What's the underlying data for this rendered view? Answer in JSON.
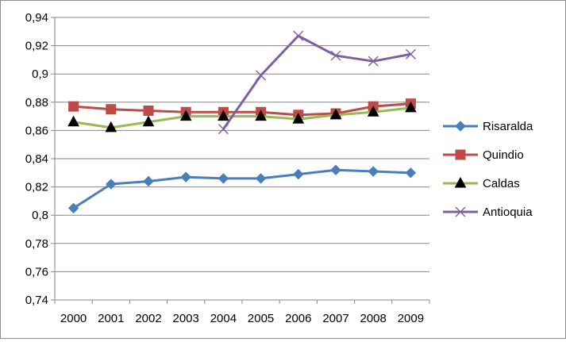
{
  "chart_data": {
    "type": "line",
    "title": "",
    "xlabel": "",
    "ylabel": "",
    "categories": [
      "2000",
      "2001",
      "2002",
      "2003",
      "2004",
      "2005",
      "2006",
      "2007",
      "2008",
      "2009"
    ],
    "ylim": [
      0.74,
      0.94
    ],
    "yticks": [
      0.74,
      0.76,
      0.78,
      0.8,
      0.82,
      0.84,
      0.86,
      0.88,
      0.9,
      0.92,
      0.94
    ],
    "ytick_labels": [
      "0,74",
      "0,76",
      "0,78",
      "0,8",
      "0,82",
      "0,84",
      "0,86",
      "0,88",
      "0,9",
      "0,92",
      "0,94"
    ],
    "grid": "horizontal",
    "legend": "right",
    "series": [
      {
        "name": "Risaralda",
        "color": "#4a7ebb",
        "marker": "diamond",
        "values": [
          0.805,
          0.822,
          0.824,
          0.827,
          0.826,
          0.826,
          0.829,
          0.832,
          0.831,
          0.83
        ]
      },
      {
        "name": "Quindio",
        "color": "#be4b48",
        "marker": "square",
        "values": [
          0.877,
          0.875,
          0.874,
          0.873,
          0.873,
          0.873,
          0.871,
          0.872,
          0.877,
          0.879
        ]
      },
      {
        "name": "Caldas",
        "color": "#98b954",
        "marker": "triangle",
        "values": [
          0.866,
          0.862,
          0.866,
          0.87,
          0.87,
          0.87,
          0.868,
          0.871,
          0.873,
          0.876
        ]
      },
      {
        "name": "Antioquia",
        "color": "#7d60a0",
        "marker": "x",
        "values": [
          null,
          null,
          null,
          null,
          0.861,
          0.899,
          0.927,
          0.913,
          0.909,
          0.914
        ]
      }
    ]
  }
}
